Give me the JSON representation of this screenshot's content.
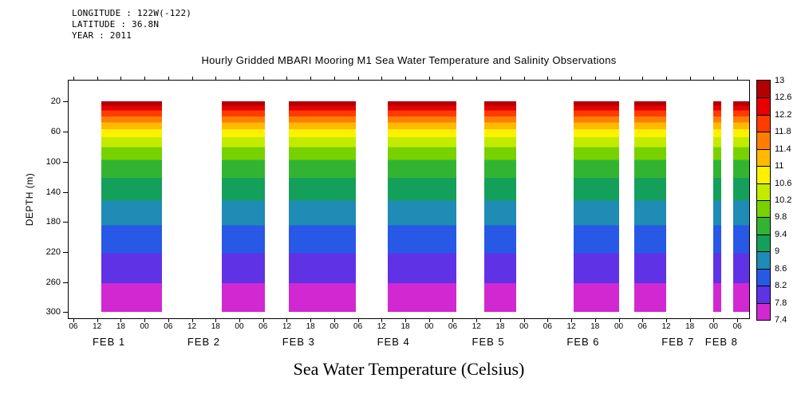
{
  "meta": {
    "longitude_line": "LONGITUDE : 122W(-122)",
    "latitude_line": "LATITUDE : 36.8N",
    "year_line": "YEAR : 2011"
  },
  "title": "Hourly Gridded MBARI Mooring M1 Sea Water Temperature and Salinity Observations",
  "footer_label": "Sea Water Temperature (Celsius)",
  "chart_data": {
    "type": "heatmap",
    "title": "Hourly Gridded MBARI Mooring M1 Sea Water Temperature and Salinity Observations",
    "xlabel": "Sea Water Temperature (Celsius)",
    "ylabel": "DEPTH (m)",
    "y_range": [
      -8,
      308
    ],
    "y_ticks": [
      20,
      60,
      100,
      140,
      180,
      220,
      260,
      300
    ],
    "x_range_hours": [
      4.8,
      177
    ],
    "x_ticks": [
      {
        "h": 6,
        "l": "06"
      },
      {
        "h": 12,
        "l": "12"
      },
      {
        "h": 18,
        "l": "18"
      },
      {
        "h": 24,
        "l": "00"
      },
      {
        "h": 30,
        "l": "06"
      },
      {
        "h": 36,
        "l": "12"
      },
      {
        "h": 42,
        "l": "18"
      },
      {
        "h": 48,
        "l": "00"
      },
      {
        "h": 54,
        "l": "06"
      },
      {
        "h": 60,
        "l": "12"
      },
      {
        "h": 66,
        "l": "18"
      },
      {
        "h": 72,
        "l": "00"
      },
      {
        "h": 78,
        "l": "06"
      },
      {
        "h": 84,
        "l": "12"
      },
      {
        "h": 90,
        "l": "18"
      },
      {
        "h": 96,
        "l": "00"
      },
      {
        "h": 102,
        "l": "06"
      },
      {
        "h": 108,
        "l": "12"
      },
      {
        "h": 114,
        "l": "18"
      },
      {
        "h": 120,
        "l": "00"
      },
      {
        "h": 126,
        "l": "06"
      },
      {
        "h": 132,
        "l": "12"
      },
      {
        "h": 138,
        "l": "18"
      },
      {
        "h": 144,
        "l": "00"
      },
      {
        "h": 150,
        "l": "06"
      },
      {
        "h": 156,
        "l": "12"
      },
      {
        "h": 162,
        "l": "18"
      },
      {
        "h": 168,
        "l": "00"
      },
      {
        "h": 174,
        "l": "06"
      }
    ],
    "day_labels": [
      {
        "h": 15,
        "l": "FEB 1"
      },
      {
        "h": 39,
        "l": "FEB 2"
      },
      {
        "h": 63,
        "l": "FEB 3"
      },
      {
        "h": 87,
        "l": "FEB 4"
      },
      {
        "h": 111,
        "l": "FEB 5"
      },
      {
        "h": 135,
        "l": "FEB 6"
      },
      {
        "h": 159,
        "l": "FEB 7"
      },
      {
        "h": 170,
        "l": "FEB 8"
      }
    ],
    "colorbar": {
      "levels": [
        "13",
        "12.6",
        "12.2",
        "11.8",
        "11.4",
        "11",
        "10.6",
        "10.2",
        "9.8",
        "9.4",
        "9",
        "8.6",
        "8.2",
        "7.8",
        "7.4"
      ],
      "colors": [
        "#b40000",
        "#e60000",
        "#ff3c00",
        "#ff7d00",
        "#ffb900",
        "#fff000",
        "#c3eb00",
        "#78d200",
        "#32b432",
        "#14a05a",
        "#1e8cb4",
        "#2858e6",
        "#5f32e6",
        "#d228d2"
      ]
    },
    "temperature_profile": {
      "depth_edges_m": [
        20,
        26,
        32,
        40,
        48,
        57,
        68,
        81,
        98,
        122,
        152,
        185,
        222,
        262,
        300
      ],
      "temps_c_at_edges": [
        13,
        12.6,
        12.2,
        11.8,
        11.4,
        11,
        10.6,
        10.2,
        9.8,
        9.4,
        9,
        8.6,
        8.2,
        7.8,
        7.4
      ]
    },
    "bands_hours_from_feb1_0000": [
      [
        13,
        28.5
      ],
      [
        43.5,
        54.5
      ],
      [
        60.5,
        77.5
      ],
      [
        85.5,
        103
      ],
      [
        110,
        118
      ],
      [
        132.5,
        144
      ],
      [
        148,
        156
      ],
      [
        168,
        170
      ],
      [
        173,
        177
      ]
    ],
    "band_depth_extent_m": [
      20,
      300
    ]
  }
}
